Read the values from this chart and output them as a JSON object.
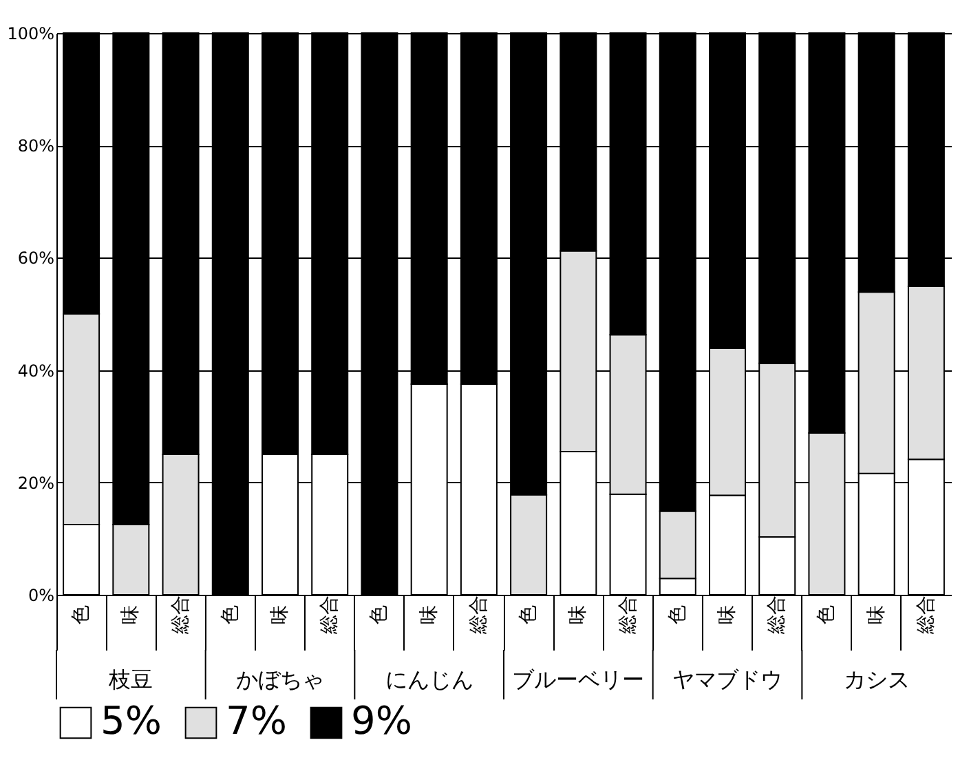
{
  "chart_data": {
    "type": "bar",
    "stacked": true,
    "categories": [
      "色",
      "味",
      "総合",
      "色",
      "味",
      "総合",
      "色",
      "味",
      "総合",
      "色",
      "味",
      "総合",
      "色",
      "味",
      "総合",
      "色",
      "味",
      "総合"
    ],
    "annotations": [
      "枝豆",
      "かぼちゃ",
      "にんじん",
      "ブルーベリー",
      "ヤマブドウ",
      "カシス"
    ],
    "series": [
      {
        "name": "5%",
        "color": "#ffffff",
        "values": [
          12.5,
          0,
          0,
          0,
          25,
          25,
          0,
          37.5,
          37.5,
          0,
          25.5,
          17.9,
          2.9,
          17.7,
          10.3,
          0,
          21.6,
          24.1
        ]
      },
      {
        "name": "7%",
        "color": "#e0e0e0",
        "values": [
          37.5,
          12.5,
          25,
          0,
          0,
          0,
          0,
          0,
          0,
          17.8,
          35.7,
          28.4,
          12.0,
          26.2,
          30.9,
          28.8,
          32.3,
          30.8
        ]
      },
      {
        "name": "9%",
        "color": "#000000",
        "values": [
          50,
          87.5,
          75,
          100,
          75,
          75,
          100,
          62.5,
          62.5,
          82.2,
          38.8,
          53.7,
          85.1,
          56.1,
          58.8,
          71.2,
          46.1,
          45.1
        ]
      }
    ],
    "ylim": [
      0,
      100
    ],
    "yticks": [
      {
        "value": 0,
        "label": "0%"
      },
      {
        "value": 20,
        "label": "20%"
      },
      {
        "value": 40,
        "label": "40%"
      },
      {
        "value": 60,
        "label": "60%"
      },
      {
        "value": 80,
        "label": "80%"
      },
      {
        "value": 100,
        "label": "100%"
      }
    ],
    "grid": "y",
    "legend": "bottom"
  }
}
